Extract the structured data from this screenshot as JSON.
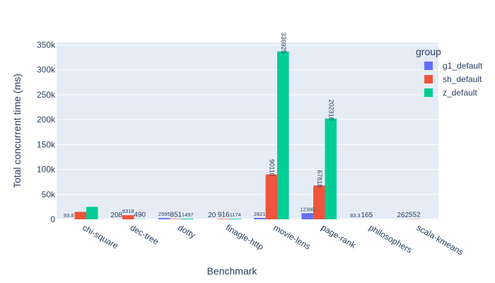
{
  "chart_data": {
    "type": "bar",
    "xlabel": "Benchmark",
    "ylabel": "Total concurrent time (ms)",
    "ylim": [
      0,
      355000
    ],
    "y_ticks": [
      0,
      50000,
      100000,
      150000,
      200000,
      250000,
      300000,
      350000
    ],
    "y_tick_labels": [
      "0",
      "50k",
      "100k",
      "150k",
      "200k",
      "250k",
      "300k",
      "350k"
    ],
    "grid": true,
    "legend_placement": "top-right",
    "legend_title": "group",
    "categories": [
      "chi-square",
      "dec-tree",
      "dotty",
      "finagle-http",
      "movie-lens",
      "page-rank",
      "philosophers",
      "scala-kmeans"
    ],
    "series": [
      {
        "name": "g1_default",
        "color": "#636efa",
        "values": [
          93.8,
          208,
          2595,
          20,
          2821,
          12380,
          83.3,
          262
        ],
        "labels": [
          "93.8",
          "208",
          "2595",
          "20",
          "2821",
          "12380",
          "83.3",
          "262"
        ]
      },
      {
        "name": "sh_default",
        "color": "#ef553b",
        "values": [
          15000,
          8318,
          851,
          916,
          90110,
          67818,
          165,
          552
        ],
        "labels": [
          "",
          "8318",
          "851",
          "916",
          "90110",
          "67818",
          "165",
          "552"
        ]
      },
      {
        "name": "z_default",
        "color": "#00cc96",
        "values": [
          25000,
          490,
          1497,
          1174,
          336925,
          202316,
          0,
          0
        ],
        "labels": [
          "",
          "490",
          "1497",
          "1174",
          "336925",
          "202316",
          "",
          ""
        ]
      }
    ]
  }
}
